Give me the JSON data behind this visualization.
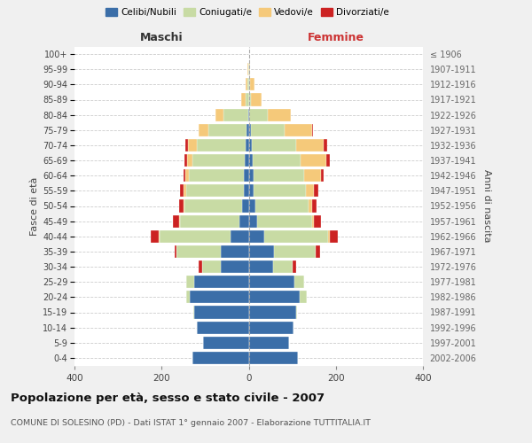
{
  "age_groups": [
    "0-4",
    "5-9",
    "10-14",
    "15-19",
    "20-24",
    "25-29",
    "30-34",
    "35-39",
    "40-44",
    "45-49",
    "50-54",
    "55-59",
    "60-64",
    "65-69",
    "70-74",
    "75-79",
    "80-84",
    "85-89",
    "90-94",
    "95-99",
    "100+"
  ],
  "birth_years": [
    "2002-2006",
    "1997-2001",
    "1992-1996",
    "1987-1991",
    "1982-1986",
    "1977-1981",
    "1972-1976",
    "1967-1971",
    "1962-1966",
    "1957-1961",
    "1952-1956",
    "1947-1951",
    "1942-1946",
    "1937-1941",
    "1932-1936",
    "1927-1931",
    "1922-1926",
    "1917-1921",
    "1912-1916",
    "1907-1911",
    "≤ 1906"
  ],
  "males": {
    "celibi": [
      130,
      105,
      120,
      125,
      135,
      125,
      65,
      65,
      42,
      22,
      15,
      12,
      12,
      10,
      8,
      5,
      2,
      0,
      0,
      0,
      0
    ],
    "coniugati": [
      0,
      0,
      0,
      2,
      8,
      18,
      42,
      100,
      162,
      135,
      132,
      132,
      125,
      120,
      112,
      88,
      55,
      8,
      4,
      2,
      0
    ],
    "vedovi": [
      0,
      0,
      0,
      0,
      0,
      0,
      0,
      0,
      2,
      2,
      3,
      5,
      8,
      12,
      20,
      22,
      20,
      10,
      3,
      1,
      0
    ],
    "divorziati": [
      0,
      0,
      0,
      0,
      0,
      0,
      8,
      5,
      18,
      15,
      10,
      8,
      5,
      5,
      5,
      0,
      0,
      0,
      0,
      0,
      0
    ]
  },
  "females": {
    "celibi": [
      112,
      92,
      102,
      108,
      118,
      105,
      55,
      58,
      35,
      20,
      15,
      12,
      12,
      10,
      8,
      5,
      2,
      0,
      0,
      0,
      0
    ],
    "coniugati": [
      0,
      0,
      0,
      2,
      15,
      22,
      45,
      95,
      148,
      125,
      122,
      120,
      115,
      110,
      100,
      78,
      42,
      5,
      3,
      1,
      0
    ],
    "vedovi": [
      0,
      0,
      0,
      0,
      0,
      0,
      0,
      0,
      3,
      5,
      8,
      18,
      38,
      58,
      65,
      62,
      52,
      25,
      10,
      3,
      1
    ],
    "divorziati": [
      0,
      0,
      0,
      0,
      0,
      0,
      8,
      10,
      18,
      15,
      10,
      10,
      8,
      8,
      8,
      2,
      0,
      0,
      0,
      0,
      0
    ]
  },
  "colors": {
    "celibi": "#3b6ea8",
    "coniugati": "#c8dba4",
    "vedovi": "#f5c97a",
    "divorziati": "#cc2222"
  },
  "xlim": 400,
  "title": "Popolazione per età, sesso e stato civile - 2007",
  "subtitle": "COMUNE DI SOLESINO (PD) - Dati ISTAT 1° gennaio 2007 - Elaborazione TUTTITALIA.IT",
  "ylabel_left": "Fasce di età",
  "ylabel_right": "Anni di nascita",
  "xlabel_left": "Maschi",
  "xlabel_right": "Femmine",
  "bg_color": "#f0f0f0",
  "plot_bg": "#ffffff"
}
